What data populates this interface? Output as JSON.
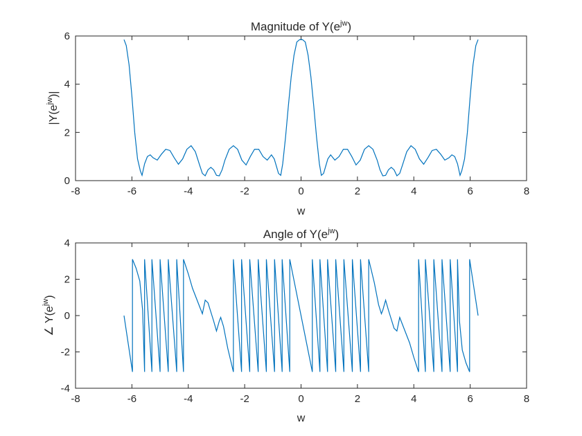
{
  "colors": {
    "line": "#0072BD",
    "axes": "#262626",
    "background": "#ffffff"
  },
  "chart_data": [
    {
      "type": "line",
      "title": "Magnitude of Y(e^{jw})",
      "title_parts": {
        "base": "Magnitude of Y(e",
        "sup": "jw",
        "end": ")"
      },
      "xlabel": "w",
      "ylabel": "|Y(e^{jw})|",
      "ylabel_parts": {
        "base": "|Y(e",
        "sup": "jw",
        "end": ")|"
      },
      "xlim": [
        -8,
        8
      ],
      "ylim": [
        0,
        6
      ],
      "xticks": [
        "-8",
        "-6",
        "-4",
        "-2",
        "0",
        "2",
        "4",
        "6",
        "8"
      ],
      "yticks": [
        "0",
        "2",
        "4",
        "6"
      ],
      "grid": false,
      "series": [
        {
          "x": [
            -6.28,
            -6.2,
            -6.1,
            -6.0,
            -5.9,
            -5.8,
            -5.7,
            -5.64,
            -5.55,
            -5.45,
            -5.35,
            -5.25,
            -5.1,
            -4.95,
            -4.8,
            -4.65,
            -4.5,
            -4.35,
            -4.2,
            -4.05,
            -3.9,
            -3.75,
            -3.6,
            -3.5,
            -3.4,
            -3.3,
            -3.2,
            -3.1,
            -3.0,
            -2.9,
            -2.8,
            -2.7,
            -2.55,
            -2.4,
            -2.25,
            -2.1,
            -1.95,
            -1.8,
            -1.65,
            -1.5,
            -1.35,
            -1.2,
            -1.05,
            -0.95,
            -0.85,
            -0.8,
            -0.72,
            -0.65,
            -0.55,
            -0.45,
            -0.35,
            -0.25,
            -0.15,
            -0.05,
            0.0,
            0.05,
            0.15,
            0.25,
            0.35,
            0.45,
            0.55,
            0.65,
            0.72,
            0.8,
            0.85,
            0.95,
            1.05,
            1.2,
            1.35,
            1.5,
            1.65,
            1.8,
            1.95,
            2.1,
            2.25,
            2.4,
            2.55,
            2.7,
            2.8,
            2.9,
            3.0,
            3.1,
            3.2,
            3.3,
            3.4,
            3.5,
            3.6,
            3.75,
            3.9,
            4.05,
            4.2,
            4.35,
            4.5,
            4.65,
            4.8,
            4.95,
            5.1,
            5.25,
            5.35,
            5.45,
            5.55,
            5.64,
            5.7,
            5.8,
            5.9,
            6.0,
            6.1,
            6.2,
            6.28
          ],
          "y": [
            5.85,
            5.6,
            4.8,
            3.5,
            2.0,
            0.9,
            0.4,
            0.22,
            0.7,
            1.0,
            1.07,
            0.95,
            0.85,
            1.1,
            1.3,
            1.25,
            0.95,
            0.68,
            0.9,
            1.3,
            1.45,
            1.2,
            0.65,
            0.3,
            0.2,
            0.45,
            0.55,
            0.45,
            0.22,
            0.2,
            0.45,
            0.85,
            1.3,
            1.45,
            1.3,
            0.85,
            0.65,
            1.0,
            1.3,
            1.3,
            1.0,
            0.85,
            1.07,
            0.9,
            0.5,
            0.3,
            0.22,
            0.7,
            1.8,
            3.1,
            4.3,
            5.2,
            5.75,
            5.85,
            5.85,
            5.85,
            5.75,
            5.2,
            4.3,
            3.1,
            1.8,
            0.7,
            0.22,
            0.3,
            0.5,
            0.9,
            1.07,
            0.85,
            1.0,
            1.3,
            1.3,
            1.0,
            0.65,
            0.85,
            1.3,
            1.45,
            1.3,
            0.85,
            0.45,
            0.2,
            0.22,
            0.45,
            0.55,
            0.45,
            0.2,
            0.3,
            0.65,
            1.2,
            1.45,
            1.3,
            0.9,
            0.68,
            0.95,
            1.25,
            1.3,
            1.1,
            0.85,
            0.95,
            1.07,
            1.0,
            0.7,
            0.22,
            0.4,
            0.9,
            2.0,
            3.5,
            4.8,
            5.6,
            5.85
          ]
        }
      ]
    },
    {
      "type": "line",
      "title": "Angle of Y(e^{jw})",
      "title_parts": {
        "base": "Angle of Y(e",
        "sup": "jw",
        "end": ")"
      },
      "xlabel": "w",
      "ylabel": "∠Y(e^{jw})",
      "ylabel_parts": {
        "base": "∠ Y(e",
        "sup": "jw",
        "end": ")"
      },
      "xlim": [
        -8,
        8
      ],
      "ylim": [
        -4,
        4
      ],
      "xticks": [
        "-8",
        "-6",
        "-4",
        "-2",
        "0",
        "2",
        "4",
        "6",
        "8"
      ],
      "yticks": [
        "-4",
        "-2",
        "0",
        "2",
        "4"
      ],
      "grid": false,
      "series": [
        {
          "x": [
            -6.28,
            -5.98,
            -5.98,
            -5.85,
            -5.72,
            -5.62,
            -5.55,
            -5.55,
            -5.29,
            -5.29,
            -5.0,
            -5.0,
            -4.71,
            -4.71,
            -4.41,
            -4.41,
            -4.17,
            -4.17,
            -4.0,
            -3.85,
            -3.7,
            -3.6,
            -3.5,
            -3.4,
            -3.3,
            -3.2,
            -3.1,
            -3.0,
            -2.9,
            -2.85,
            -2.75,
            -2.6,
            -2.4,
            -2.4,
            -2.11,
            -2.11,
            -1.82,
            -1.82,
            -1.52,
            -1.52,
            -1.23,
            -1.23,
            -0.94,
            -0.94,
            -0.67,
            -0.67,
            -0.4,
            -0.4,
            0.0,
            0.4,
            0.4,
            0.67,
            0.67,
            0.94,
            0.94,
            1.23,
            1.23,
            1.52,
            1.52,
            1.82,
            1.82,
            2.11,
            2.11,
            2.4,
            2.4,
            2.6,
            2.75,
            2.85,
            2.9,
            3.0,
            3.1,
            3.2,
            3.3,
            3.4,
            3.5,
            3.6,
            3.7,
            3.85,
            4.0,
            4.17,
            4.17,
            4.41,
            4.41,
            4.71,
            4.71,
            5.0,
            5.0,
            5.29,
            5.29,
            5.55,
            5.55,
            5.62,
            5.72,
            5.85,
            5.98,
            5.98,
            6.28
          ],
          "y": [
            0.0,
            -3.1,
            3.1,
            2.6,
            1.9,
            0.3,
            -3.1,
            3.1,
            -3.1,
            3.1,
            -3.1,
            3.1,
            -3.1,
            3.1,
            -3.1,
            3.1,
            -3.1,
            3.1,
            2.3,
            1.5,
            0.9,
            0.5,
            0.1,
            0.85,
            0.7,
            0.2,
            -0.3,
            -0.85,
            -0.3,
            -0.1,
            -0.6,
            -1.8,
            -3.1,
            3.1,
            -3.1,
            3.1,
            -3.1,
            3.1,
            -3.1,
            3.1,
            -3.1,
            3.1,
            -3.1,
            3.1,
            -3.1,
            3.1,
            -3.1,
            3.1,
            0.0,
            -3.1,
            3.1,
            -3.1,
            3.1,
            -3.1,
            3.1,
            -3.1,
            3.1,
            -3.1,
            3.1,
            -3.1,
            3.1,
            -3.1,
            3.1,
            -3.1,
            3.1,
            1.8,
            0.6,
            0.1,
            0.3,
            0.85,
            0.3,
            -0.2,
            -0.7,
            -0.85,
            -0.1,
            -0.5,
            -0.9,
            -1.5,
            -2.3,
            -3.1,
            3.1,
            -3.1,
            3.1,
            -3.1,
            3.1,
            -3.1,
            3.1,
            -3.1,
            3.1,
            -3.1,
            3.1,
            -0.3,
            -1.9,
            -2.6,
            -3.1,
            3.1,
            0.0
          ]
        }
      ]
    }
  ]
}
